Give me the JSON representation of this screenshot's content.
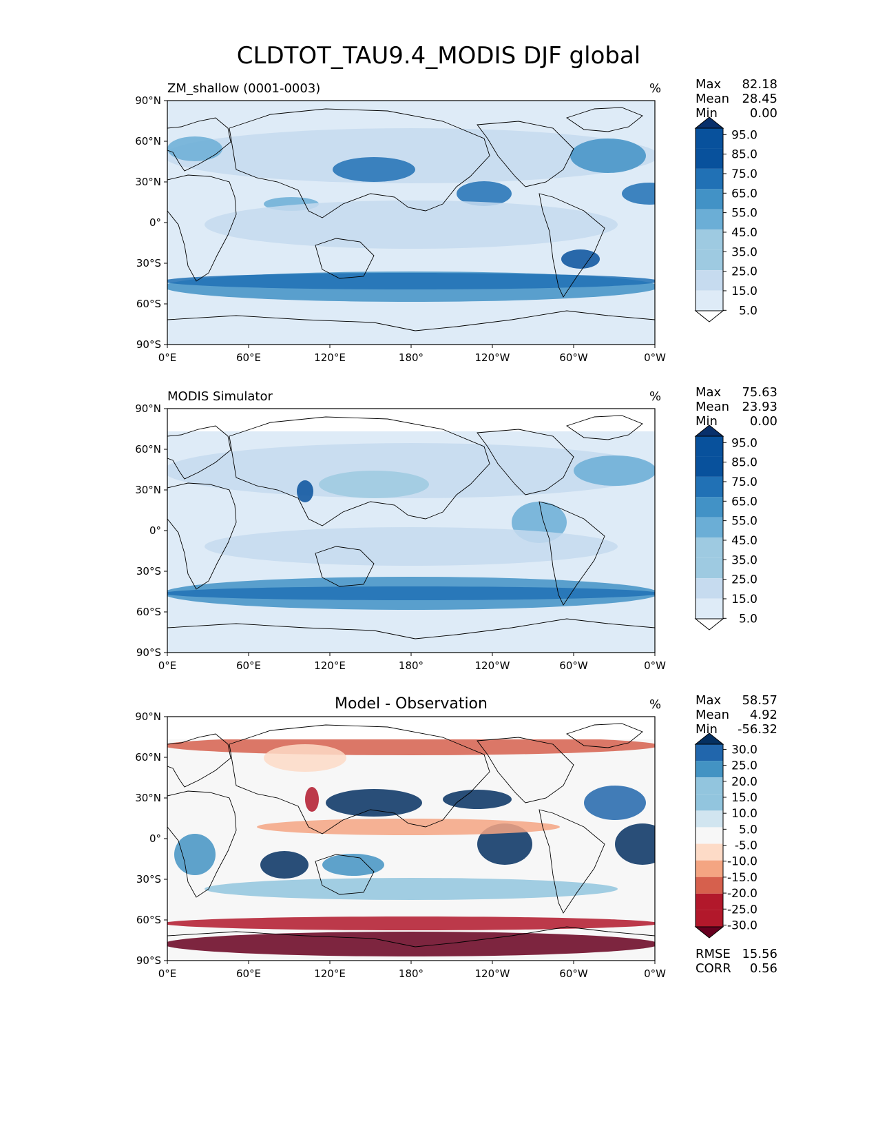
{
  "figure": {
    "title": "CLDTOT_TAU9.4_MODIS DJF global"
  },
  "colors": {
    "seq": [
      "#f7fbff",
      "#deebf7",
      "#c6dbef",
      "#9ecae1",
      "#6baed6",
      "#4292c6",
      "#2171b5",
      "#08519c",
      "#08306b"
    ],
    "div": [
      "#67001f",
      "#b2182b",
      "#d6604d",
      "#f4a582",
      "#fddbc7",
      "#f7f7f7",
      "#d1e5f0",
      "#92c5de",
      "#4393c3",
      "#2166ac",
      "#053061"
    ],
    "land": "#ffffff",
    "coast": "#000000"
  },
  "chart_data": [
    {
      "type": "heatmap",
      "panel": "top",
      "title_left": "ZM_shallow (0001-0003)",
      "title_center": "",
      "units": "%",
      "stats": [
        {
          "label": "Max",
          "value": "82.18"
        },
        {
          "label": "Mean",
          "value": "28.45"
        },
        {
          "label": "Min",
          "value": "0.00"
        }
      ],
      "colorbar": {
        "levels": [
          "95.0",
          "85.0",
          "75.0",
          "65.0",
          "55.0",
          "45.0",
          "35.0",
          "25.0",
          "15.0",
          "5.0"
        ],
        "extend": "both",
        "palette": "seq"
      },
      "x_ticks": [
        "0°E",
        "60°E",
        "120°E",
        "180°",
        "120°W",
        "60°W",
        "0°W"
      ],
      "y_ticks": [
        "90°N",
        "60°N",
        "30°N",
        "0°",
        "30°S",
        "60°S",
        "90°S"
      ],
      "xlim": [
        0,
        360
      ],
      "ylim": [
        -90,
        90
      ]
    },
    {
      "type": "heatmap",
      "panel": "middle",
      "title_left": "MODIS Simulator",
      "title_center": "",
      "units": "%",
      "stats": [
        {
          "label": "Max",
          "value": "75.63"
        },
        {
          "label": "Mean",
          "value": "23.93"
        },
        {
          "label": "Min",
          "value": "0.00"
        }
      ],
      "colorbar": {
        "levels": [
          "95.0",
          "85.0",
          "75.0",
          "65.0",
          "55.0",
          "45.0",
          "35.0",
          "25.0",
          "15.0",
          "5.0"
        ],
        "extend": "both",
        "palette": "seq"
      },
      "x_ticks": [
        "0°E",
        "60°E",
        "120°E",
        "180°",
        "120°W",
        "60°W",
        "0°W"
      ],
      "y_ticks": [
        "90°N",
        "60°N",
        "30°N",
        "0°",
        "30°S",
        "60°S",
        "90°S"
      ],
      "xlim": [
        0,
        360
      ],
      "ylim": [
        -90,
        90
      ]
    },
    {
      "type": "heatmap",
      "panel": "bottom",
      "title_left": "",
      "title_center": "Model - Observation",
      "units": "%",
      "stats": [
        {
          "label": "Max",
          "value": "58.57"
        },
        {
          "label": "Mean",
          "value": "4.92"
        },
        {
          "label": "Min",
          "value": "-56.32"
        }
      ],
      "colorbar": {
        "levels": [
          "30.0",
          "25.0",
          "20.0",
          "15.0",
          "10.0",
          "5.0",
          "-5.0",
          "-10.0",
          "-15.0",
          "-20.0",
          "-25.0",
          "-30.0"
        ],
        "extend": "both",
        "palette": "div"
      },
      "x_ticks": [
        "0°E",
        "60°E",
        "120°E",
        "180°",
        "120°W",
        "60°W",
        "0°W"
      ],
      "y_ticks": [
        "90°N",
        "60°N",
        "30°N",
        "0°",
        "30°S",
        "60°S",
        "90°S"
      ],
      "xlim": [
        0,
        360
      ],
      "ylim": [
        -90,
        90
      ],
      "metrics": [
        {
          "label": "RMSE",
          "value": "15.56"
        },
        {
          "label": "CORR",
          "value": "0.56"
        }
      ]
    }
  ]
}
